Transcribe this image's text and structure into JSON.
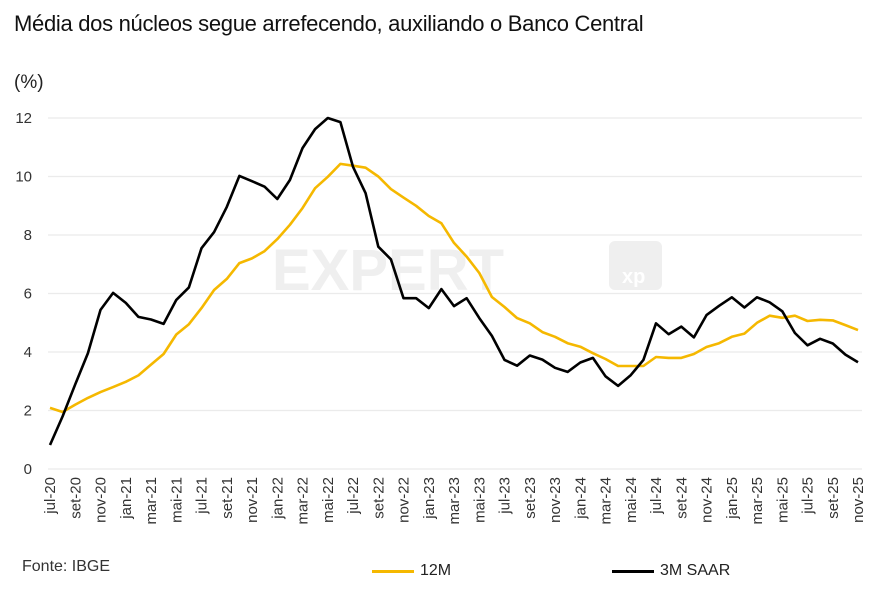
{
  "chart_data": {
    "type": "line",
    "title": "Média dos núcleos segue arrefecendo, auxiliando o Banco Central",
    "ylabel": "(%)",
    "xlabel": "",
    "ylim": [
      0,
      12
    ],
    "yticks": [
      "0",
      "2",
      "4",
      "6",
      "8",
      "10",
      "12"
    ],
    "grid": true,
    "legend_position": "bottom",
    "x": [
      "jul-20",
      "ago-20",
      "set-20",
      "out-20",
      "nov-20",
      "dez-20",
      "jan-21",
      "fev-21",
      "mar-21",
      "abr-21",
      "mai-21",
      "jun-21",
      "jul-21",
      "ago-21",
      "set-21",
      "out-21",
      "nov-21",
      "dez-21",
      "jan-22",
      "fev-22",
      "mar-22",
      "abr-22",
      "mai-22",
      "jun-22",
      "jul-22",
      "ago-22",
      "set-22",
      "out-22",
      "nov-22",
      "dez-22",
      "jan-23",
      "fev-23",
      "mar-23",
      "abr-23",
      "mai-23",
      "jun-23",
      "jul-23",
      "ago-23",
      "set-23",
      "out-23",
      "nov-23",
      "dez-23",
      "jan-24",
      "fev-24",
      "mar-24",
      "abr-24",
      "mai-24",
      "jun-24",
      "jul-24",
      "ago-24",
      "set-24",
      "out-24",
      "nov-24",
      "dez-24",
      "jan-25",
      "fev-25",
      "mar-25",
      "abr-25",
      "mai-25",
      "jun-25",
      "jul-25",
      "ago-25",
      "set-25",
      "out-25",
      "nov-25"
    ],
    "xtick_labels": [
      "jul-20",
      "set-20",
      "nov-20",
      "jan-21",
      "mar-21",
      "mai-21",
      "jul-21",
      "set-21",
      "nov-21",
      "jan-22",
      "mar-22",
      "mai-22",
      "jul-22",
      "set-22",
      "nov-22",
      "jan-23",
      "mar-23",
      "mai-23",
      "jul-23",
      "set-23",
      "nov-23",
      "jan-24",
      "mar-24",
      "mai-24",
      "jul-24",
      "set-24",
      "nov-24",
      "jan-25",
      "mar-25",
      "mai-25",
      "jul-25",
      "set-25",
      "nov-25"
    ],
    "series": [
      {
        "name": "12M",
        "color": "#F5B800",
        "values": [
          2.09,
          1.95,
          2.2,
          2.43,
          2.63,
          2.8,
          2.98,
          3.2,
          3.57,
          3.93,
          4.6,
          4.95,
          5.5,
          6.12,
          6.5,
          7.04,
          7.2,
          7.45,
          7.86,
          8.35,
          8.92,
          9.6,
          9.99,
          10.43,
          10.37,
          10.3,
          10.0,
          9.57,
          9.28,
          9.0,
          8.65,
          8.4,
          7.73,
          7.26,
          6.7,
          5.88,
          5.54,
          5.16,
          4.98,
          4.68,
          4.52,
          4.3,
          4.18,
          3.96,
          3.76,
          3.52,
          3.52,
          3.52,
          3.83,
          3.8,
          3.8,
          3.93,
          4.17,
          4.3,
          4.52,
          4.63,
          5.0,
          5.24,
          5.17,
          5.24,
          5.06,
          5.1,
          5.08,
          4.92,
          4.75
        ]
      },
      {
        "name": "3M SAAR",
        "color": "#000000",
        "values": [
          0.82,
          1.8,
          2.9,
          3.96,
          5.44,
          6.02,
          5.68,
          5.2,
          5.11,
          4.96,
          5.78,
          6.21,
          7.55,
          8.1,
          8.96,
          10.02,
          9.84,
          9.65,
          9.23,
          9.88,
          10.97,
          11.62,
          12.0,
          11.86,
          10.33,
          9.43,
          7.6,
          7.17,
          5.84,
          5.84,
          5.5,
          6.15,
          5.57,
          5.84,
          5.16,
          4.55,
          3.73,
          3.53,
          3.88,
          3.74,
          3.46,
          3.32,
          3.64,
          3.8,
          3.17,
          2.84,
          3.21,
          3.73,
          4.98,
          4.61,
          4.87,
          4.5,
          5.26,
          5.58,
          5.87,
          5.52,
          5.87,
          5.7,
          5.39,
          4.65,
          4.23,
          4.45,
          4.29,
          3.91,
          3.65
        ]
      }
    ],
    "source": "Fonte: IBGE",
    "watermark": "EXPERT xp"
  }
}
